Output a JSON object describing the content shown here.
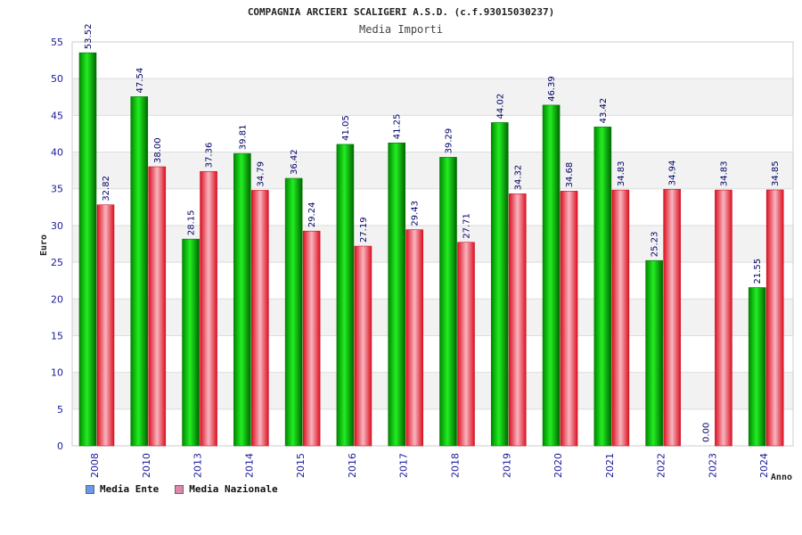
{
  "chart_data": {
    "type": "bar",
    "title": "COMPAGNIA ARCIERI SCALIGERI A.S.D. (c.f.93015030237)",
    "subtitle": "Media Importi",
    "ylabel": "Euro",
    "xlabel": "Anno",
    "ylim": [
      0,
      55
    ],
    "yticks": [
      "0",
      "5",
      "10",
      "15",
      "20",
      "25",
      "30",
      "35",
      "40",
      "45",
      "50",
      "55"
    ],
    "grid": true,
    "legend_position": "bottom-left",
    "categories": [
      "2008",
      "2010",
      "2013",
      "2014",
      "2015",
      "2016",
      "2017",
      "2018",
      "2019",
      "2020",
      "2021",
      "2022",
      "2023",
      "2024"
    ],
    "series": [
      {
        "name": "Media Ente",
        "legend_color": "#6699ee",
        "bar_color": "#00cc00",
        "values": [
          53.52,
          47.54,
          28.15,
          39.81,
          36.42,
          41.05,
          41.25,
          39.29,
          44.02,
          46.39,
          43.42,
          25.23,
          0.0,
          21.55
        ],
        "value_labels": [
          "53.52",
          "47.54",
          "28.15",
          "39.81",
          "36.42",
          "41.05",
          "41.25",
          "39.29",
          "44.02",
          "46.39",
          "43.42",
          "25.23",
          "0.00",
          "21.55"
        ]
      },
      {
        "name": "Media Nazionale",
        "legend_color": "#dd88aa",
        "bar_color": "#ee2233",
        "values": [
          32.82,
          38.0,
          37.36,
          34.79,
          29.24,
          27.19,
          29.43,
          27.71,
          34.32,
          34.68,
          34.83,
          34.94,
          34.83,
          34.85
        ],
        "value_labels": [
          "32.82",
          "38.00",
          "37.36",
          "34.79",
          "29.24",
          "27.19",
          "29.43",
          "27.71",
          "34.32",
          "34.68",
          "34.83",
          "34.94",
          "34.83",
          "34.85"
        ]
      }
    ]
  }
}
